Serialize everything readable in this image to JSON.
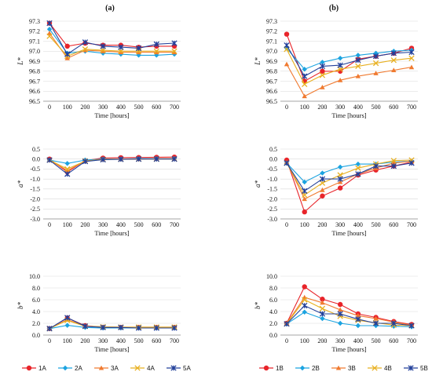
{
  "panel_labels": [
    "(a)",
    "(b)"
  ],
  "colors": {
    "1": "#e8242a",
    "2": "#1ba3e0",
    "3": "#f07a30",
    "4": "#e8b020",
    "5": "#23409a"
  },
  "legend": {
    "a": [
      "1A",
      "2A",
      "3A",
      "4A",
      "5A"
    ],
    "b": [
      "1B",
      "2B",
      "3B",
      "4B",
      "5B"
    ]
  },
  "chart_data": [
    {
      "type": "line",
      "id": "a-L",
      "col": "a",
      "xlabel": "Time [hours]",
      "ylabel": "L*",
      "x": [
        0,
        100,
        200,
        300,
        400,
        500,
        600,
        700
      ],
      "ylim": [
        96.5,
        97.3
      ],
      "yticks": [
        "96.5",
        "96.6",
        "96.7",
        "96.8",
        "96.9",
        "97.0",
        "97.1",
        "97.2",
        "97.3"
      ],
      "series": [
        {
          "name": "1A",
          "values": [
            97.28,
            97.05,
            97.08,
            97.06,
            97.06,
            97.04,
            97.05,
            97.05
          ]
        },
        {
          "name": "2A",
          "values": [
            97.22,
            96.98,
            97.0,
            96.98,
            96.97,
            96.96,
            96.96,
            96.97
          ]
        },
        {
          "name": "3A",
          "values": [
            97.18,
            96.93,
            97.01,
            97.0,
            96.99,
            96.99,
            96.99,
            96.99
          ]
        },
        {
          "name": "4A",
          "values": [
            97.15,
            96.95,
            97.02,
            97.01,
            97.0,
            97.0,
            97.0,
            97.0
          ]
        },
        {
          "name": "5A",
          "values": [
            97.28,
            96.97,
            97.09,
            97.05,
            97.04,
            97.03,
            97.07,
            97.08
          ]
        }
      ]
    },
    {
      "type": "line",
      "id": "b-L",
      "col": "b",
      "xlabel": "Time [hours]",
      "ylabel": "L*",
      "x": [
        0,
        100,
        200,
        300,
        400,
        500,
        600,
        700
      ],
      "ylim": [
        96.5,
        97.3
      ],
      "yticks": [
        "96.5",
        "96.6",
        "96.7",
        "96.8",
        "96.9",
        "97.0",
        "97.1",
        "97.2",
        "97.3"
      ],
      "series": [
        {
          "name": "1B",
          "values": [
            97.17,
            96.7,
            96.8,
            96.8,
            96.92,
            96.95,
            96.98,
            97.03
          ]
        },
        {
          "name": "2B",
          "values": [
            97.03,
            96.82,
            96.89,
            96.93,
            96.96,
            96.98,
            97.0,
            97.01
          ]
        },
        {
          "name": "3B",
          "values": [
            96.87,
            96.55,
            96.64,
            96.71,
            96.75,
            96.78,
            96.81,
            96.84
          ]
        },
        {
          "name": "4B",
          "values": [
            97.02,
            96.67,
            96.76,
            96.82,
            96.85,
            96.88,
            96.91,
            96.93
          ]
        },
        {
          "name": "5B",
          "values": [
            97.06,
            96.75,
            96.85,
            96.86,
            96.91,
            96.95,
            96.98,
            96.99
          ]
        }
      ]
    },
    {
      "type": "line",
      "id": "a-a",
      "col": "a",
      "xlabel": "Time [hours]",
      "ylabel": "a*",
      "x": [
        0,
        100,
        200,
        300,
        400,
        500,
        600,
        700
      ],
      "ylim": [
        -3.0,
        0.5
      ],
      "yticks": [
        "-3.0",
        "-2.5",
        "-2.0",
        "-1.5",
        "-1.0",
        "-0.5",
        "0.0",
        "0.5"
      ],
      "series": [
        {
          "name": "1A",
          "values": [
            0.0,
            -0.65,
            -0.08,
            0.05,
            0.07,
            0.08,
            0.09,
            0.1
          ]
        },
        {
          "name": "2A",
          "values": [
            -0.05,
            -0.22,
            -0.05,
            0.0,
            0.0,
            0.02,
            0.03,
            0.03
          ]
        },
        {
          "name": "3A",
          "values": [
            -0.05,
            -0.58,
            -0.1,
            -0.02,
            0.0,
            0.0,
            0.02,
            0.02
          ]
        },
        {
          "name": "4A",
          "values": [
            -0.05,
            -0.5,
            -0.1,
            -0.02,
            -0.01,
            0.0,
            0.0,
            0.0
          ]
        },
        {
          "name": "5A",
          "values": [
            -0.05,
            -0.75,
            -0.12,
            -0.03,
            -0.01,
            0.0,
            0.0,
            0.0
          ]
        }
      ]
    },
    {
      "type": "line",
      "id": "b-a",
      "col": "b",
      "xlabel": "Time [hours]",
      "ylabel": "a*",
      "x": [
        0,
        100,
        200,
        300,
        400,
        500,
        600,
        700
      ],
      "ylim": [
        -3.0,
        0.5
      ],
      "yticks": [
        "-3.0",
        "-2.5",
        "-2.0",
        "-1.5",
        "-1.0",
        "-0.5",
        "0.0",
        "0.5"
      ],
      "series": [
        {
          "name": "1B",
          "values": [
            -0.05,
            -2.65,
            -1.85,
            -1.45,
            -0.8,
            -0.55,
            -0.35,
            -0.15
          ]
        },
        {
          "name": "2B",
          "values": [
            -0.2,
            -1.15,
            -0.7,
            -0.4,
            -0.25,
            -0.25,
            -0.15,
            -0.1
          ]
        },
        {
          "name": "3B",
          "values": [
            -0.15,
            -2.0,
            -1.55,
            -1.15,
            -0.75,
            -0.45,
            -0.2,
            -0.1
          ]
        },
        {
          "name": "4B",
          "values": [
            -0.2,
            -1.8,
            -1.2,
            -0.8,
            -0.45,
            -0.25,
            -0.08,
            -0.05
          ]
        },
        {
          "name": "5B",
          "values": [
            -0.2,
            -1.6,
            -1.0,
            -1.0,
            -0.75,
            -0.35,
            -0.35,
            -0.2
          ]
        }
      ]
    },
    {
      "type": "line",
      "id": "a-b",
      "col": "a",
      "xlabel": "Time [hours]",
      "ylabel": "b*",
      "x": [
        0,
        100,
        200,
        300,
        400,
        500,
        600,
        700
      ],
      "ylim": [
        0.0,
        10.0
      ],
      "yticks": [
        "0.0",
        "2.0",
        "4.0",
        "6.0",
        "8.0",
        "10.0"
      ],
      "series": [
        {
          "name": "1A",
          "values": [
            1.1,
            2.9,
            1.6,
            1.3,
            1.3,
            1.3,
            1.3,
            1.3
          ]
        },
        {
          "name": "2A",
          "values": [
            1.1,
            1.65,
            1.3,
            1.2,
            1.2,
            1.2,
            1.2,
            1.2
          ]
        },
        {
          "name": "3A",
          "values": [
            1.1,
            2.6,
            1.55,
            1.4,
            1.35,
            1.35,
            1.35,
            1.35
          ]
        },
        {
          "name": "4A",
          "values": [
            1.1,
            2.5,
            1.5,
            1.4,
            1.35,
            1.35,
            1.35,
            1.35
          ]
        },
        {
          "name": "5A",
          "values": [
            1.1,
            2.95,
            1.5,
            1.3,
            1.3,
            1.2,
            1.2,
            1.2
          ]
        }
      ]
    },
    {
      "type": "line",
      "id": "b-b",
      "col": "b",
      "xlabel": "Time [hours]",
      "ylabel": "b*",
      "x": [
        0,
        100,
        200,
        300,
        400,
        500,
        600,
        700
      ],
      "ylim": [
        0.0,
        10.0
      ],
      "yticks": [
        "0.0",
        "2.0",
        "4.0",
        "6.0",
        "8.0",
        "10.0"
      ],
      "series": [
        {
          "name": "1B",
          "values": [
            2.0,
            8.2,
            6.1,
            5.2,
            3.6,
            3.0,
            2.3,
            1.8
          ]
        },
        {
          "name": "2B",
          "values": [
            1.9,
            3.9,
            2.8,
            2.0,
            1.6,
            1.6,
            1.5,
            1.4
          ]
        },
        {
          "name": "3B",
          "values": [
            2.0,
            6.4,
            5.5,
            4.3,
            3.3,
            2.8,
            2.2,
            1.7
          ]
        },
        {
          "name": "4B",
          "values": [
            1.9,
            6.0,
            4.5,
            3.2,
            2.5,
            2.1,
            1.7,
            1.6
          ]
        },
        {
          "name": "5B",
          "values": [
            1.9,
            5.0,
            3.6,
            3.6,
            2.7,
            2.0,
            2.0,
            1.6
          ]
        }
      ]
    }
  ]
}
